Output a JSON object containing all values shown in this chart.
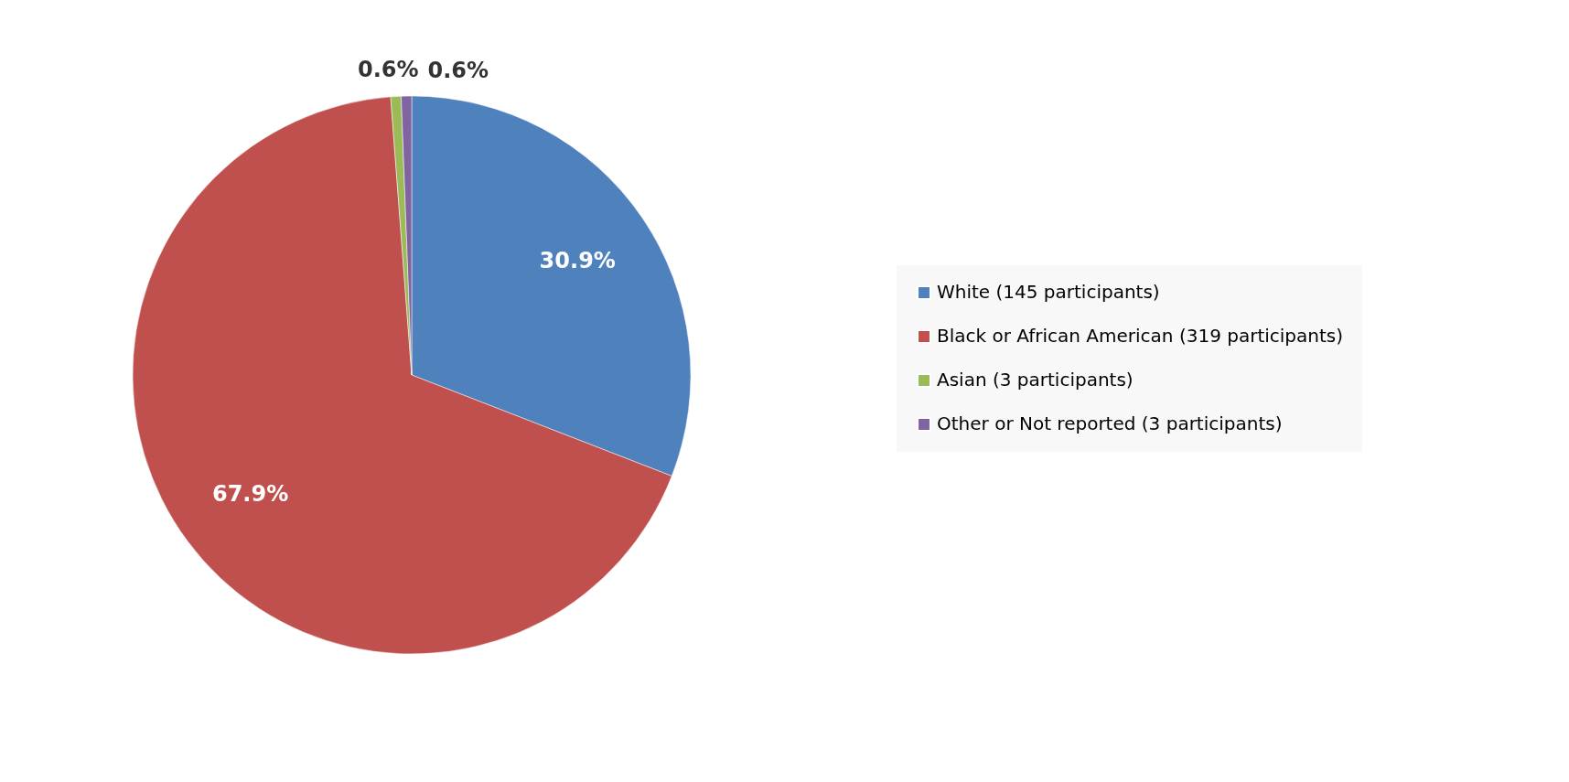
{
  "chart_data": {
    "type": "pie",
    "categories": [
      "White (145 participants)",
      "Black or African American (319 participants)",
      "Asian (3 participants)",
      "Other or Not reported (3 participants)"
    ],
    "values": [
      30.9,
      67.9,
      0.6,
      0.6
    ],
    "colors": [
      "#4f81bd",
      "#c0504d",
      "#9bbb59",
      "#8064a2"
    ],
    "value_labels": [
      "30.9%",
      "67.9%",
      "0.6%",
      "0.6%"
    ],
    "legend": "right"
  }
}
